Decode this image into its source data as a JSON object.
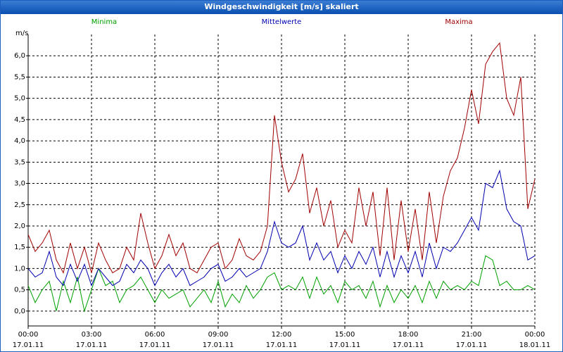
{
  "chart_data": {
    "type": "line",
    "title": "Windgeschwindigkeit [m/s] skaliert",
    "y_label": "m/s",
    "x": [
      0,
      20,
      40,
      60,
      80,
      100,
      120,
      140,
      160,
      180,
      200,
      220,
      240,
      260,
      280,
      300,
      320,
      340,
      360,
      380,
      400,
      420,
      440,
      460,
      480,
      500,
      520,
      540,
      560,
      580,
      600,
      620,
      640,
      660,
      680,
      700,
      720,
      740,
      760,
      780,
      800,
      820,
      840,
      860,
      880,
      900,
      920,
      940,
      960,
      980,
      1000,
      1020,
      1040,
      1060,
      1080,
      1100,
      1120,
      1140,
      1160,
      1180,
      1200,
      1220,
      1240,
      1260,
      1280,
      1300,
      1320,
      1340,
      1360,
      1380,
      1400,
      1420,
      1440
    ],
    "series": [
      {
        "name": "Minima",
        "color": "#00a000",
        "values": [
          0.6,
          0.2,
          0.5,
          0.7,
          0.0,
          0.7,
          0.2,
          0.8,
          0.0,
          0.5,
          1.0,
          0.6,
          0.7,
          0.2,
          0.5,
          0.6,
          0.8,
          0.5,
          0.2,
          0.5,
          0.3,
          0.4,
          0.5,
          0.1,
          0.3,
          0.5,
          0.2,
          0.7,
          0.1,
          0.4,
          0.2,
          0.6,
          0.3,
          0.5,
          0.8,
          0.9,
          0.5,
          0.6,
          0.5,
          0.8,
          0.3,
          0.8,
          0.4,
          0.6,
          0.2,
          0.7,
          0.5,
          0.6,
          0.3,
          0.7,
          0.1,
          0.6,
          0.2,
          0.5,
          0.3,
          0.6,
          0.2,
          0.7,
          0.3,
          0.7,
          0.5,
          0.6,
          0.5,
          0.7,
          0.6,
          1.3,
          1.2,
          0.6,
          0.7,
          0.5,
          0.5,
          0.6,
          0.5
        ]
      },
      {
        "name": "Mittelwerte",
        "color": "#0000b0",
        "values": [
          1.0,
          0.8,
          0.9,
          1.4,
          0.8,
          0.6,
          1.1,
          0.7,
          1.1,
          0.6,
          1.0,
          0.8,
          0.6,
          0.7,
          1.1,
          0.9,
          1.2,
          1.0,
          0.6,
          0.9,
          1.1,
          0.8,
          1.0,
          0.6,
          0.7,
          0.8,
          1.0,
          1.1,
          0.7,
          0.8,
          1.0,
          0.8,
          0.9,
          1.0,
          1.4,
          2.1,
          1.6,
          1.5,
          1.6,
          2.0,
          1.2,
          1.6,
          1.2,
          1.4,
          0.9,
          1.3,
          1.0,
          1.4,
          1.1,
          1.5,
          0.8,
          1.4,
          0.8,
          1.3,
          0.9,
          1.4,
          0.8,
          1.6,
          1.0,
          1.5,
          1.4,
          1.6,
          1.9,
          2.2,
          1.9,
          3.0,
          2.9,
          3.3,
          2.4,
          2.1,
          2.0,
          1.2,
          1.3
        ]
      },
      {
        "name": "Maxima",
        "color": "#a00000",
        "values": [
          1.8,
          1.4,
          1.6,
          1.9,
          1.2,
          0.9,
          1.6,
          1.0,
          1.5,
          0.9,
          1.6,
          1.2,
          0.9,
          1.0,
          1.5,
          1.2,
          2.3,
          1.6,
          1.0,
          1.3,
          1.8,
          1.3,
          1.6,
          1.0,
          0.9,
          1.2,
          1.5,
          1.6,
          1.0,
          1.2,
          1.7,
          1.3,
          1.2,
          1.4,
          2.0,
          4.6,
          3.5,
          2.8,
          3.1,
          3.7,
          2.3,
          2.9,
          2.0,
          2.6,
          1.5,
          1.9,
          1.6,
          2.9,
          2.0,
          2.8,
          1.3,
          2.9,
          1.2,
          2.6,
          1.4,
          2.4,
          1.2,
          2.8,
          1.6,
          2.7,
          3.3,
          3.6,
          4.3,
          5.2,
          4.4,
          5.8,
          6.1,
          6.3,
          5.0,
          4.6,
          5.5,
          2.4,
          3.1
        ]
      }
    ],
    "xlim": [
      0,
      1440
    ],
    "xticks": [
      {
        "value": 0,
        "label": "00:00\n17.01.11"
      },
      {
        "value": 180,
        "label": "03:00\n17.01.11"
      },
      {
        "value": 360,
        "label": "06:00\n17.01.11"
      },
      {
        "value": 540,
        "label": "09:00\n17.01.11"
      },
      {
        "value": 720,
        "label": "12:00\n17.01.11"
      },
      {
        "value": 900,
        "label": "15:00\n17.01.11"
      },
      {
        "value": 1080,
        "label": "18:00\n17.01.11"
      },
      {
        "value": 1260,
        "label": "21:00\n17.01.11"
      },
      {
        "value": 1440,
        "label": "00:00\n18.01.11"
      }
    ],
    "ylim": [
      -0.35,
      6.5
    ],
    "yticks": [
      {
        "value": 0,
        "label": "0,0"
      },
      {
        "value": 0.5,
        "label": "0,5"
      },
      {
        "value": 1,
        "label": "1,0"
      },
      {
        "value": 1.5,
        "label": "1,5"
      },
      {
        "value": 2,
        "label": "2,0"
      },
      {
        "value": 2.5,
        "label": "2,5"
      },
      {
        "value": 3,
        "label": "3,0"
      },
      {
        "value": 3.5,
        "label": "3,5"
      },
      {
        "value": 4,
        "label": "4,0"
      },
      {
        "value": 4.5,
        "label": "4,5"
      },
      {
        "value": 5,
        "label": "5,0"
      },
      {
        "value": 5.5,
        "label": "5,5"
      },
      {
        "value": 6,
        "label": "6,0"
      }
    ],
    "grid": true
  }
}
